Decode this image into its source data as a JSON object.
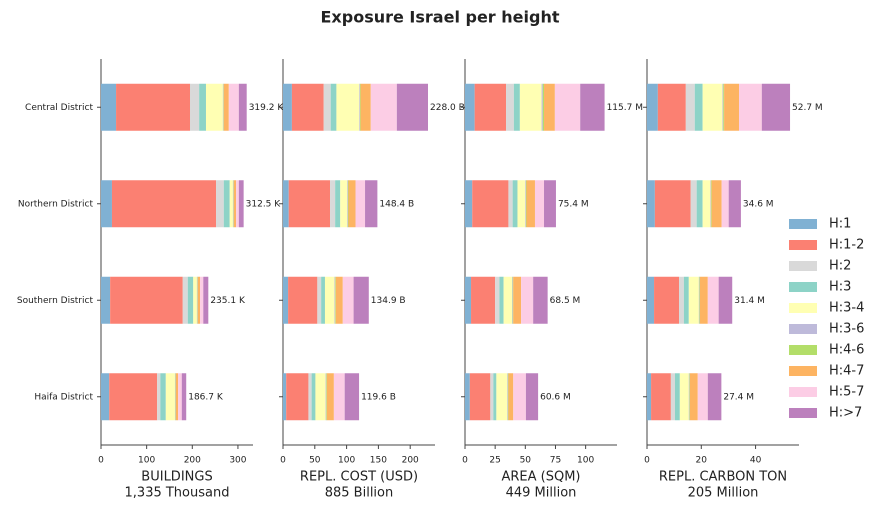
{
  "title": "Exposure Israel per height",
  "chart_data": [
    {
      "type": "bar",
      "orientation": "horizontal",
      "stacked": true,
      "categories": [
        "Central District",
        "Northern District",
        "Southern District",
        "Haifa District"
      ],
      "series": [
        {
          "name": "H:1",
          "color": "#80b1d3",
          "values": [
            33,
            24,
            20,
            18
          ]
        },
        {
          "name": "H:1-2",
          "color": "#fb8072",
          "values": [
            162,
            228,
            159.1,
            105
          ]
        },
        {
          "name": "H:2",
          "color": "#d9d9d9",
          "values": [
            20,
            17,
            11,
            7
          ]
        },
        {
          "name": "H:3",
          "color": "#8dd3c7",
          "values": [
            15,
            13,
            12,
            12
          ]
        },
        {
          "name": "H:3-4",
          "color": "#ffffb3",
          "values": [
            37,
            7,
            8,
            20
          ]
        },
        {
          "name": "H:3-6",
          "color": "#bebada",
          "values": [
            1,
            1,
            1,
            1
          ]
        },
        {
          "name": "H:4-6",
          "color": "#b3de69",
          "values": [
            1,
            1,
            1,
            1
          ]
        },
        {
          "name": "H:4-7",
          "color": "#fdb462",
          "values": [
            11,
            5,
            5,
            5
          ]
        },
        {
          "name": "H:5-7",
          "color": "#fccde5",
          "values": [
            22,
            6,
            7,
            8
          ]
        },
        {
          "name": "H:>7",
          "color": "#bc80bd",
          "values": [
            17.2,
            10.5,
            11,
            9.7
          ]
        }
      ],
      "totals": {
        "values": [
          319.2,
          312.5,
          235.1,
          186.7
        ],
        "value_labels": [
          "319.2 K",
          "312.5 K",
          "235.1 K",
          "186.7 K"
        ]
      },
      "xlim": [
        0,
        333
      ],
      "xticks": [
        0,
        100,
        200,
        300
      ],
      "xlabel": "BUILDINGS",
      "xlabel2": "1,335 Thousand"
    },
    {
      "type": "bar",
      "orientation": "horizontal",
      "stacked": true,
      "series": [
        {
          "values": [
            14,
            9,
            8,
            5
          ]
        },
        {
          "values": [
            50,
            65,
            46,
            35
          ]
        },
        {
          "values": [
            11,
            8,
            6,
            5
          ]
        },
        {
          "values": [
            9,
            8,
            6,
            6
          ]
        },
        {
          "values": [
            36,
            11,
            15,
            16
          ]
        },
        {
          "values": [
            1,
            1,
            1,
            1
          ]
        },
        {
          "values": [
            1,
            1,
            1,
            1
          ]
        },
        {
          "values": [
            16,
            11,
            11,
            11
          ]
        },
        {
          "values": [
            41,
            15,
            17,
            17
          ]
        },
        {
          "values": [
            49,
            19.4,
            23.9,
            22.6
          ]
        }
      ],
      "totals": {
        "values": [
          228.0,
          148.4,
          134.9,
          119.6
        ],
        "value_labels": [
          "228.0 B",
          "148.4 B",
          "134.9 B",
          "119.6 B"
        ]
      },
      "xlim": [
        0,
        239
      ],
      "xticks": [
        0,
        50,
        100,
        150,
        200
      ],
      "xlabel": "REPL. COST (USD)",
      "xlabel2": "885 Billion"
    },
    {
      "type": "bar",
      "orientation": "horizontal",
      "stacked": true,
      "series": [
        {
          "values": [
            8,
            6,
            5,
            4
          ]
        },
        {
          "values": [
            26,
            30,
            20,
            17
          ]
        },
        {
          "values": [
            6.5,
            3.5,
            3.5,
            2.5
          ]
        },
        {
          "values": [
            5,
            4,
            3.5,
            2.5
          ]
        },
        {
          "values": [
            18,
            6.5,
            7,
            9
          ]
        },
        {
          "values": [
            1,
            0.5,
            0.5,
            0.5
          ]
        },
        {
          "values": [
            1,
            0.5,
            0.5,
            0.5
          ]
        },
        {
          "values": [
            9,
            7,
            6.5,
            4
          ]
        },
        {
          "values": [
            21,
            7.5,
            10,
            10.5
          ]
        },
        {
          "values": [
            20.2,
            9.9,
            12,
            10.1
          ]
        }
      ],
      "totals": {
        "values": [
          115.7,
          75.4,
          68.5,
          60.6
        ],
        "value_labels": [
          "115.7 M",
          "75.4 M",
          "68.5 M",
          "60.6 M"
        ]
      },
      "xlim": [
        0,
        126
      ],
      "xticks": [
        0,
        25,
        50,
        75,
        100
      ],
      "xlabel": "AREA (SQM)",
      "xlabel2": "449 Million"
    },
    {
      "type": "bar",
      "orientation": "horizontal",
      "stacked": true,
      "series": [
        {
          "values": [
            4,
            2.9,
            2.6,
            1.5
          ]
        },
        {
          "values": [
            10.3,
            13.2,
            9.2,
            7.3
          ]
        },
        {
          "values": [
            3.3,
            2.2,
            1.8,
            1.5
          ]
        },
        {
          "values": [
            2.9,
            2.2,
            1.8,
            1.8
          ]
        },
        {
          "values": [
            7.3,
            2.9,
            3.7,
            3.3
          ]
        },
        {
          "values": [
            0.3,
            0.2,
            0.2,
            0.2
          ]
        },
        {
          "values": [
            0.3,
            0.2,
            0.2,
            0.2
          ]
        },
        {
          "values": [
            5.5,
            3.7,
            2.9,
            2.9
          ]
        },
        {
          "values": [
            8.4,
            2.6,
            4,
            3.7
          ]
        },
        {
          "values": [
            10.4,
            4.5,
            5,
            5
          ]
        }
      ],
      "totals": {
        "values": [
          52.7,
          34.6,
          31.4,
          27.4
        ],
        "value_labels": [
          "52.7 M",
          "34.6 M",
          "31.4 M",
          "27.4 M"
        ]
      },
      "xlim": [
        0,
        56
      ],
      "xticks": [
        0,
        20,
        40
      ],
      "xlabel": "REPL. CARBON TON",
      "xlabel2": "205 Million"
    }
  ]
}
